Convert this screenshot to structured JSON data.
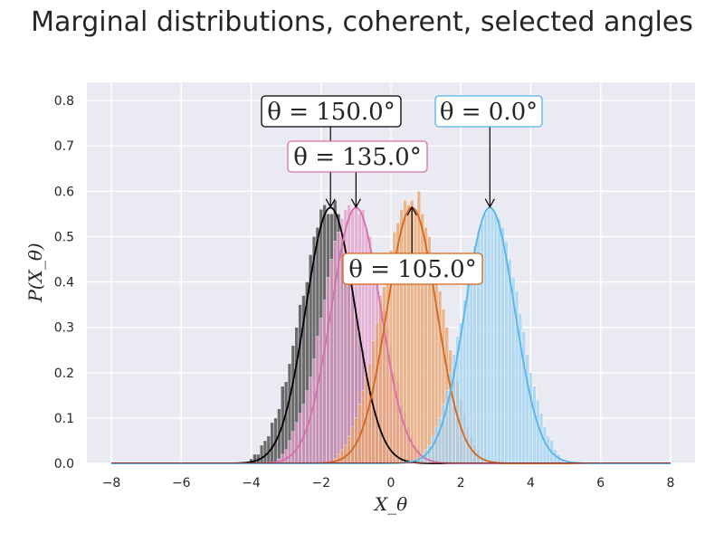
{
  "chart_data": {
    "type": "histogram+line",
    "title": "Marginal distributions, coherent, selected angles",
    "xlabel": "X_θ",
    "ylabel": "P(X_θ)",
    "xlim": [
      -8.7,
      8.7
    ],
    "ylim": [
      0,
      0.84
    ],
    "xticks": [
      -8,
      -6,
      -4,
      -2,
      0,
      2,
      4,
      6,
      8
    ],
    "xtick_labels": [
      "−8",
      "−6",
      "−4",
      "−2",
      "0",
      "2",
      "4",
      "6",
      "8"
    ],
    "yticks": [
      0,
      0.1,
      0.2,
      0.3,
      0.4,
      0.5,
      0.6,
      0.7,
      0.8
    ],
    "ytick_labels": [
      "0.0",
      "0.1",
      "0.2",
      "0.3",
      "0.4",
      "0.5",
      "0.6",
      "0.7",
      "0.8"
    ],
    "grid": true,
    "series": [
      {
        "angle_deg": 150.0,
        "mean": -1.73,
        "sigma": 0.707,
        "peak": 0.564,
        "line_color": "#000000",
        "hist_color": "#404040",
        "hist_bins": [
          [
            -4.0,
            0.01
          ],
          [
            -3.9,
            0.02
          ],
          [
            -3.8,
            0.02
          ],
          [
            -3.7,
            0.04
          ],
          [
            -3.6,
            0.05
          ],
          [
            -3.5,
            0.06
          ],
          [
            -3.4,
            0.09
          ],
          [
            -3.3,
            0.1
          ],
          [
            -3.2,
            0.12
          ],
          [
            -3.1,
            0.17
          ],
          [
            -3.0,
            0.18
          ],
          [
            -2.9,
            0.22
          ],
          [
            -2.8,
            0.26
          ],
          [
            -2.7,
            0.3
          ],
          [
            -2.6,
            0.35
          ],
          [
            -2.5,
            0.37
          ],
          [
            -2.4,
            0.4
          ],
          [
            -2.3,
            0.46
          ],
          [
            -2.2,
            0.5
          ],
          [
            -2.1,
            0.52
          ],
          [
            -2.0,
            0.56
          ],
          [
            -1.9,
            0.57
          ],
          [
            -1.8,
            0.55
          ],
          [
            -1.7,
            0.55
          ],
          [
            -1.6,
            0.58
          ],
          [
            -1.5,
            0.55
          ],
          [
            -1.4,
            0.5
          ],
          [
            -1.3,
            0.46
          ],
          [
            -1.2,
            0.42
          ],
          [
            -1.1,
            0.38
          ],
          [
            -1.0,
            0.33
          ],
          [
            -0.9,
            0.29
          ],
          [
            -0.8,
            0.25
          ],
          [
            -0.7,
            0.2
          ],
          [
            -0.6,
            0.16
          ],
          [
            -0.5,
            0.12
          ],
          [
            -0.4,
            0.1
          ],
          [
            -0.3,
            0.07
          ],
          [
            -0.2,
            0.05
          ],
          [
            -0.1,
            0.03
          ],
          [
            0.0,
            0.02
          ],
          [
            0.1,
            0.01
          ]
        ],
        "annotation": {
          "text": "θ = 150.0°",
          "x": -1.73,
          "y": 0.565,
          "box_color": "#000000"
        }
      },
      {
        "angle_deg": 135.0,
        "mean": -1.0,
        "sigma": 0.707,
        "peak": 0.564,
        "line_color": "#d670a8",
        "hist_color": "#e29fcb",
        "hist_bins": [
          [
            -3.2,
            0.01
          ],
          [
            -3.1,
            0.02
          ],
          [
            -3.0,
            0.03
          ],
          [
            -2.9,
            0.05
          ],
          [
            -2.8,
            0.07
          ],
          [
            -2.7,
            0.09
          ],
          [
            -2.6,
            0.11
          ],
          [
            -2.5,
            0.13
          ],
          [
            -2.4,
            0.16
          ],
          [
            -2.3,
            0.19
          ],
          [
            -2.2,
            0.23
          ],
          [
            -2.1,
            0.28
          ],
          [
            -2.0,
            0.32
          ],
          [
            -1.9,
            0.36
          ],
          [
            -1.8,
            0.41
          ],
          [
            -1.7,
            0.45
          ],
          [
            -1.6,
            0.49
          ],
          [
            -1.5,
            0.51
          ],
          [
            -1.4,
            0.54
          ],
          [
            -1.3,
            0.56
          ],
          [
            -1.2,
            0.57
          ],
          [
            -1.1,
            0.56
          ],
          [
            -1.0,
            0.57
          ],
          [
            -0.9,
            0.55
          ],
          [
            -0.8,
            0.56
          ],
          [
            -0.7,
            0.52
          ],
          [
            -0.6,
            0.5
          ],
          [
            -0.5,
            0.46
          ],
          [
            -0.4,
            0.43
          ],
          [
            -0.3,
            0.37
          ],
          [
            -0.2,
            0.34
          ],
          [
            -0.1,
            0.3
          ],
          [
            0.0,
            0.26
          ],
          [
            0.1,
            0.2
          ],
          [
            0.2,
            0.18
          ],
          [
            0.3,
            0.13
          ],
          [
            0.4,
            0.11
          ],
          [
            0.5,
            0.08
          ],
          [
            0.6,
            0.06
          ],
          [
            0.7,
            0.04
          ],
          [
            0.8,
            0.03
          ],
          [
            0.9,
            0.02
          ]
        ],
        "annotation": {
          "text": "θ = 135.0°",
          "x": -1.0,
          "y": 0.565,
          "box_color": "#d670a8"
        }
      },
      {
        "angle_deg": 105.0,
        "mean": 0.6,
        "sigma": 0.707,
        "peak": 0.564,
        "line_color": "#d5661a",
        "hist_color": "#e9a26e",
        "hist_bins": [
          [
            -1.6,
            0.01
          ],
          [
            -1.5,
            0.02
          ],
          [
            -1.4,
            0.03
          ],
          [
            -1.3,
            0.04
          ],
          [
            -1.2,
            0.06
          ],
          [
            -1.1,
            0.08
          ],
          [
            -1.0,
            0.1
          ],
          [
            -0.9,
            0.13
          ],
          [
            -0.8,
            0.16
          ],
          [
            -0.7,
            0.19
          ],
          [
            -0.6,
            0.22
          ],
          [
            -0.5,
            0.27
          ],
          [
            -0.4,
            0.31
          ],
          [
            -0.3,
            0.36
          ],
          [
            -0.2,
            0.39
          ],
          [
            -0.1,
            0.44
          ],
          [
            0.0,
            0.47
          ],
          [
            0.1,
            0.51
          ],
          [
            0.2,
            0.53
          ],
          [
            0.3,
            0.56
          ],
          [
            0.4,
            0.58
          ],
          [
            0.5,
            0.57
          ],
          [
            0.6,
            0.58
          ],
          [
            0.7,
            0.56
          ],
          [
            0.8,
            0.6
          ],
          [
            0.9,
            0.55
          ],
          [
            1.0,
            0.52
          ],
          [
            1.1,
            0.5
          ],
          [
            1.2,
            0.45
          ],
          [
            1.3,
            0.42
          ],
          [
            1.4,
            0.38
          ],
          [
            1.5,
            0.34
          ],
          [
            1.6,
            0.3
          ],
          [
            1.7,
            0.25
          ],
          [
            1.8,
            0.21
          ],
          [
            1.9,
            0.18
          ],
          [
            2.0,
            0.14
          ],
          [
            2.1,
            0.11
          ],
          [
            2.2,
            0.08
          ],
          [
            2.3,
            0.06
          ],
          [
            2.4,
            0.04
          ],
          [
            2.5,
            0.03
          ]
        ],
        "annotation": {
          "text": "θ = 105.0°",
          "x": 0.6,
          "y": 0.565,
          "box_color": "#d5661a"
        }
      },
      {
        "angle_deg": 0.0,
        "mean": 2.83,
        "sigma": 0.707,
        "peak": 0.564,
        "line_color": "#56b4e9",
        "hist_color": "#9fd2f1",
        "hist_bins": [
          [
            0.8,
            0.01
          ],
          [
            0.9,
            0.02
          ],
          [
            1.0,
            0.03
          ],
          [
            1.1,
            0.04
          ],
          [
            1.2,
            0.06
          ],
          [
            1.3,
            0.08
          ],
          [
            1.4,
            0.1
          ],
          [
            1.5,
            0.13
          ],
          [
            1.6,
            0.16
          ],
          [
            1.7,
            0.2
          ],
          [
            1.8,
            0.24
          ],
          [
            1.9,
            0.28
          ],
          [
            2.0,
            0.31
          ],
          [
            2.1,
            0.36
          ],
          [
            2.2,
            0.4
          ],
          [
            2.3,
            0.44
          ],
          [
            2.4,
            0.48
          ],
          [
            2.5,
            0.51
          ],
          [
            2.6,
            0.53
          ],
          [
            2.7,
            0.55
          ],
          [
            2.8,
            0.56
          ],
          [
            2.9,
            0.56
          ],
          [
            3.0,
            0.55
          ],
          [
            3.1,
            0.54
          ],
          [
            3.2,
            0.52
          ],
          [
            3.3,
            0.49
          ],
          [
            3.4,
            0.45
          ],
          [
            3.5,
            0.41
          ],
          [
            3.6,
            0.38
          ],
          [
            3.7,
            0.33
          ],
          [
            3.8,
            0.29
          ],
          [
            3.9,
            0.24
          ],
          [
            4.0,
            0.2
          ],
          [
            4.1,
            0.17
          ],
          [
            4.2,
            0.14
          ],
          [
            4.3,
            0.11
          ],
          [
            4.4,
            0.08
          ],
          [
            4.5,
            0.06
          ],
          [
            4.6,
            0.05
          ],
          [
            4.7,
            0.03
          ],
          [
            4.8,
            0.02
          ],
          [
            4.9,
            0.01
          ]
        ],
        "annotation": {
          "text": "θ = 0.0°",
          "x": 2.83,
          "y": 0.565,
          "box_color": "#56b4e9"
        }
      }
    ],
    "bin_width": 0.1
  }
}
